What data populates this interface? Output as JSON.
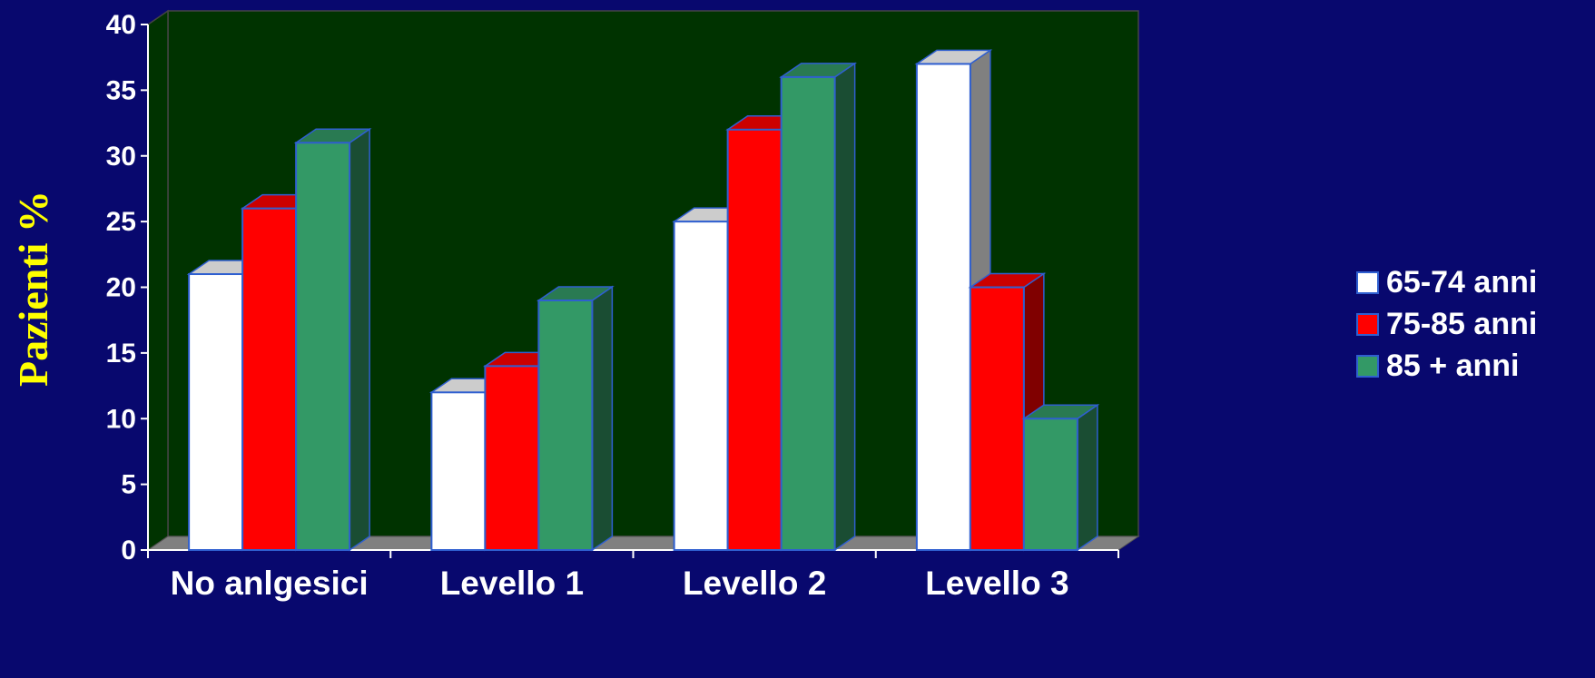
{
  "chart_data": {
    "type": "bar",
    "title": "",
    "xlabel": "",
    "ylabel": "Pazienti  %",
    "categories": [
      "No anlgesici",
      "Levello 1",
      "Levello 2",
      "Levello 3"
    ],
    "series": [
      {
        "name": "65-74 anni",
        "values": [
          21,
          12,
          25,
          37
        ],
        "color": "#ffffff"
      },
      {
        "name": "75-85 anni",
        "values": [
          26,
          14,
          32,
          20
        ],
        "color": "#ff0000"
      },
      {
        "name": "85 + anni",
        "values": [
          31,
          19,
          36,
          10
        ],
        "color": "#339966"
      }
    ],
    "ylim": [
      0,
      40
    ],
    "yticks": [
      "0",
      "5",
      "10",
      "15",
      "20",
      "25",
      "30",
      "35",
      "40"
    ],
    "grid": false,
    "legend_position": "right",
    "colors": {
      "background": "#08086e",
      "plot_wall": "#003300",
      "floor": "#808080",
      "ylabel": "#ffff00",
      "labels": "#ffffff",
      "bar_edge": "#2f5fd0"
    },
    "style": "3d-clustered-column"
  }
}
